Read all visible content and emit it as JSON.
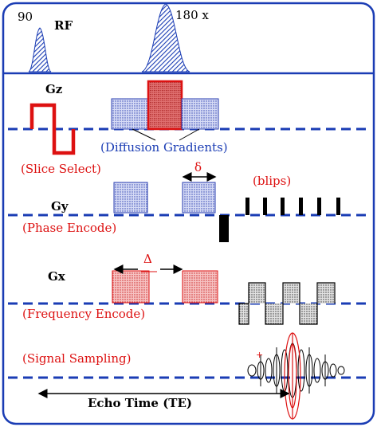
{
  "rf": {
    "pulse90_label": "90",
    "channel_label": "RF",
    "pulse180_label": "180 x"
  },
  "gz": {
    "label": "Gz",
    "diffusion_label": "(Diffusion Gradients)",
    "slice_label": "(Slice Select)"
  },
  "gy": {
    "label": "Gy",
    "delta_small": "δ",
    "blips_label": "(blips)",
    "phase_label": "(Phase Encode)"
  },
  "gx": {
    "label": "Gx",
    "delta_big": "Δ",
    "freq_label": "(Frequency Encode)"
  },
  "signal": {
    "sampling_label": "(Signal Sampling)",
    "echo_label": "Echo Time (TE)"
  },
  "colors": {
    "frame": "#1a3cb4",
    "dashed_axis": "#1a3cb4",
    "red": "#dd1111",
    "dotted_blue_fill": "#c8cfee",
    "dotted_red_fill": "#f3b0b0",
    "gray_fill": "#cfcfcf",
    "black": "#000000"
  }
}
